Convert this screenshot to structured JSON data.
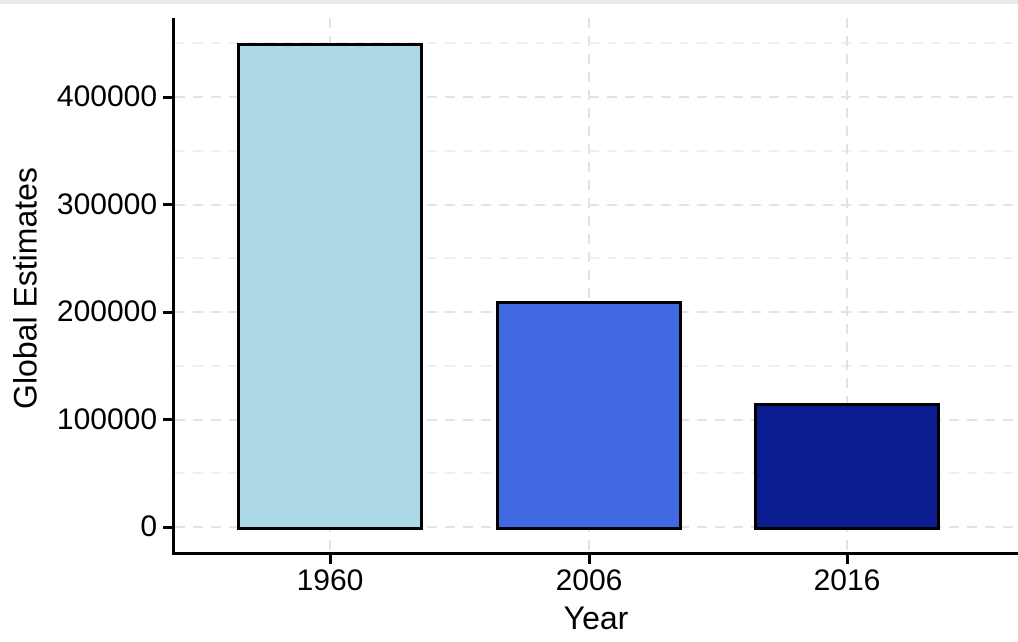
{
  "window": {
    "top_strip_color": "#E7E9EC",
    "background": "#FFFFFF"
  },
  "chart_data": {
    "type": "bar",
    "title": "",
    "xlabel": "Year",
    "ylabel": "Global Estimates",
    "categories": [
      "1960",
      "2006",
      "2016"
    ],
    "values": [
      450000,
      210000,
      115000
    ],
    "bar_colors": [
      "#ADD8E6",
      "#4169E1",
      "#0A1C8F"
    ],
    "bar_border_color": "#000000",
    "ylim": [
      0,
      450000
    ],
    "y_major_ticks": [
      0,
      100000,
      200000,
      300000,
      400000
    ],
    "y_tick_labels": [
      "0",
      "100000",
      "200000",
      "300000",
      "400000"
    ],
    "y_minor_ticks": [
      50000,
      150000,
      250000,
      350000,
      450000
    ],
    "grid": true,
    "grid_style": "dashed",
    "grid_major_color": "#E3E3E3",
    "grid_minor_color": "#EFEFEF",
    "axis_color": "#000000",
    "text_color": "#000000",
    "legend": "none"
  }
}
